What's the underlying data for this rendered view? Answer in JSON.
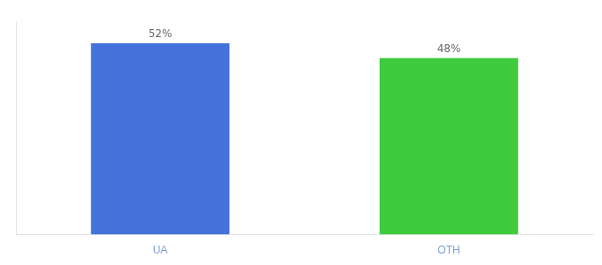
{
  "chart_data": {
    "type": "bar",
    "categories": [
      "UA",
      "OTH"
    ],
    "values": [
      52,
      48
    ],
    "value_labels": [
      "52%",
      "48%"
    ],
    "colors": [
      "#4472db",
      "#3ecb3e"
    ],
    "ylim": [
      0,
      58
    ],
    "grid": false,
    "data_labels": true,
    "tick_labels": "x"
  }
}
